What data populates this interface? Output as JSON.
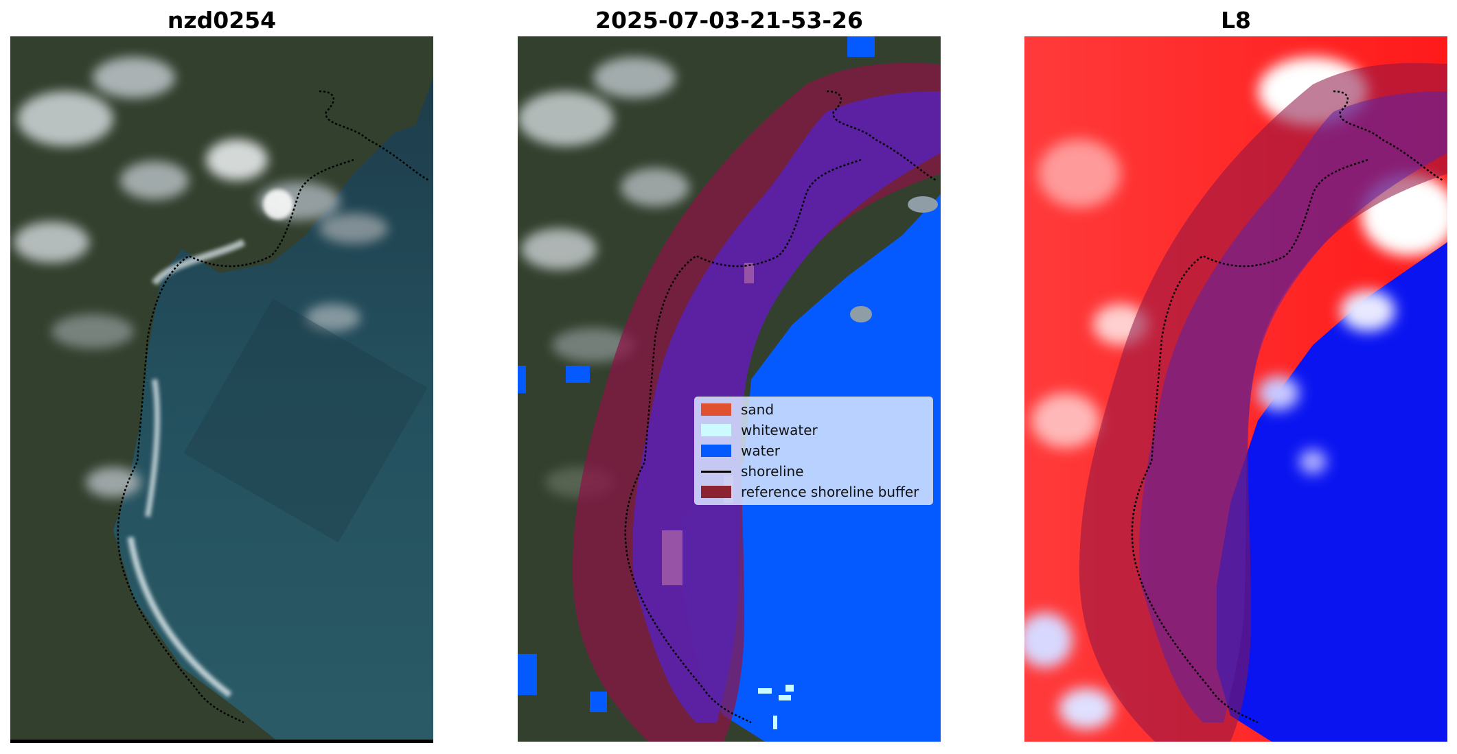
{
  "panels": [
    {
      "title": "nzd0254"
    },
    {
      "title": "2025-07-03-21-53-26"
    },
    {
      "title": "L8"
    }
  ],
  "legend": {
    "items": [
      {
        "label": "sand",
        "color": "#e0512f",
        "kind": "patch"
      },
      {
        "label": "whitewater",
        "color": "#ccfbff",
        "kind": "patch"
      },
      {
        "label": "water",
        "color": "#055aff",
        "kind": "patch"
      },
      {
        "label": "shoreline",
        "color": "#000000",
        "kind": "line"
      },
      {
        "label": "reference shoreline buffer",
        "color": "#8c2330",
        "kind": "patch"
      }
    ]
  },
  "colors": {
    "ocean": "#24505e",
    "land_dark": "#2f3d2c",
    "water_class": "#055aff",
    "buffer": "#8c1446",
    "buffer_over_water": "#5a22a8",
    "index_positive": "#ff2020",
    "index_negative": "#0a14f0"
  }
}
